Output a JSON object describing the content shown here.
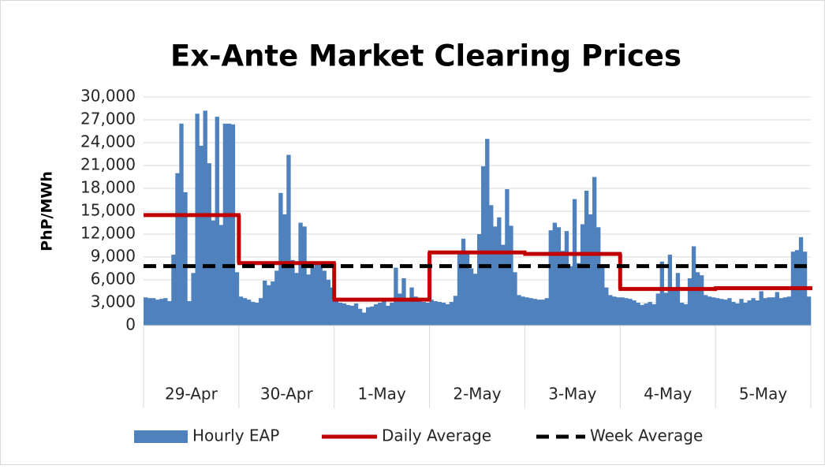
{
  "chart_data": {
    "type": "bar",
    "title": "Ex-Ante Market Clearing Prices",
    "y_label": "PhP/MWh",
    "day_labels": [
      "29-Apr",
      "30-Apr",
      "1-May",
      "2-May",
      "3-May",
      "4-May",
      "5-May"
    ],
    "hours_per_day": 24,
    "ylim": [
      0,
      30000
    ],
    "yticks": [
      0,
      {
        "value": 3000,
        "label": "3,000"
      },
      {
        "value": 6000,
        "label": "6,000"
      },
      {
        "value": 9000,
        "label": "9,000"
      },
      {
        "value": 12000,
        "label": "12,000"
      },
      {
        "value": 15000,
        "label": "15,000"
      },
      {
        "value": 18000,
        "label": "18,000"
      },
      {
        "value": 21000,
        "label": "21,000"
      },
      {
        "value": 24000,
        "label": "24,000"
      },
      {
        "value": 27000,
        "label": "27,000"
      },
      {
        "value": 30000,
        "label": "30,000"
      }
    ],
    "grid": true,
    "legend": "bottom",
    "series": [
      {
        "name": "Hourly EAP",
        "color": "#4f81bd",
        "values": [
          3700,
          3600,
          3600,
          3400,
          3500,
          3600,
          3200,
          9300,
          20000,
          26500,
          17500,
          3200,
          6900,
          27800,
          23600,
          28200,
          21300,
          13800,
          27400,
          13200,
          26500,
          26500,
          26400,
          7000,
          3800,
          3600,
          3400,
          3100,
          3000,
          3600,
          5900,
          5300,
          5800,
          7200,
          17400,
          14600,
          22400,
          8600,
          6900,
          13500,
          13000,
          6700,
          7600,
          8300,
          8000,
          7200,
          6000,
          5000,
          3300,
          3000,
          2900,
          2700,
          2600,
          2900,
          2200,
          1700,
          2400,
          2500,
          2800,
          3000,
          3200,
          2600,
          3000,
          7600,
          4200,
          6200,
          3500,
          5000,
          3800,
          3200,
          3100,
          3000,
          3400,
          3200,
          3100,
          3000,
          2800,
          3100,
          3900,
          9500,
          11400,
          9800,
          7500,
          6800,
          12000,
          20900,
          24500,
          15800,
          13000,
          14200,
          10600,
          17900,
          13100,
          7000,
          4000,
          3800,
          3700,
          3600,
          3500,
          3400,
          3400,
          3600,
          12500,
          13500,
          12900,
          9800,
          12400,
          7800,
          16600,
          8200,
          13300,
          17700,
          14600,
          19500,
          12900,
          7600,
          5000,
          4000,
          3800,
          3700,
          3700,
          3600,
          3500,
          3300,
          3000,
          2700,
          2900,
          3100,
          2800,
          4200,
          8400,
          4300,
          9300,
          5000,
          6900,
          3000,
          2800,
          6200,
          10400,
          7000,
          6600,
          4000,
          3800,
          3700,
          3600,
          3500,
          3400,
          3600,
          3100,
          2900,
          3500,
          3000,
          3300,
          3600,
          3300,
          4500,
          3600,
          3700,
          3700,
          4400,
          3600,
          3700,
          3800,
          9700,
          9900,
          11600,
          9700,
          3800
        ]
      },
      {
        "name": "Daily Average",
        "color": "#c00000",
        "values": [
          14500,
          8200,
          3400,
          9600,
          9400,
          4800,
          4900
        ]
      },
      {
        "name": "Week Average",
        "color": "#000000",
        "values": [
          7800
        ]
      }
    ]
  }
}
